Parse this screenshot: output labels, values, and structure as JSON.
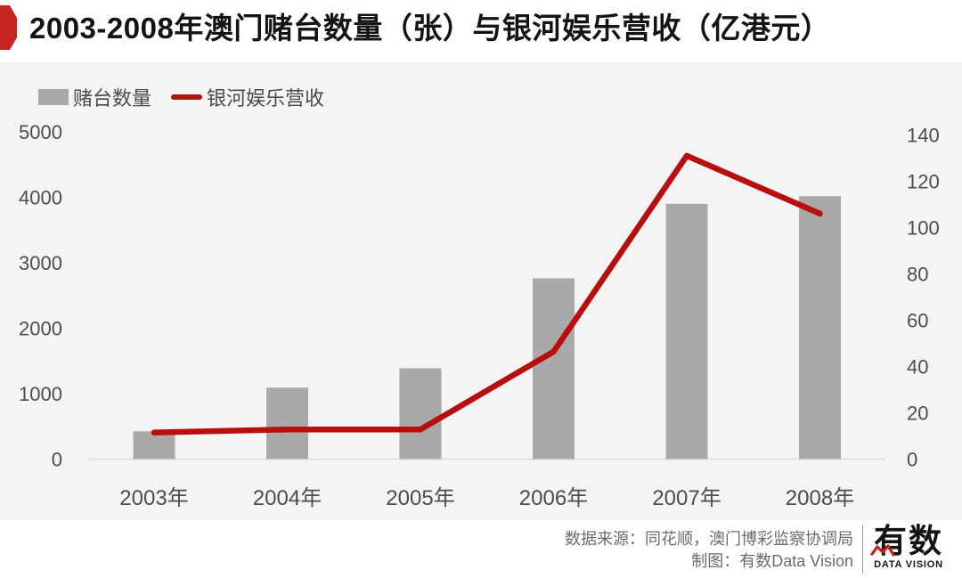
{
  "header": {
    "title": "2003-2008年澳门赌台数量（张）与银河娱乐营收（亿港元）"
  },
  "legend": {
    "bars_label": "赌台数量",
    "line_label": "银河娱乐营收"
  },
  "chart_data": {
    "type": "bar",
    "subtype": "bar-and-line-dual-axis",
    "title": "2003-2008年澳门赌台数量（张）与银河娱乐营收（亿港元）",
    "categories": [
      "2003年",
      "2004年",
      "2005年",
      "2006年",
      "2007年",
      "2008年"
    ],
    "series": [
      {
        "name": "赌台数量",
        "type": "bar",
        "axis": "left",
        "unit": "张",
        "values": [
          424,
          1092,
          1388,
          2762,
          3900,
          4017
        ]
      },
      {
        "name": "银河娱乐营收",
        "type": "line",
        "axis": "right",
        "unit": "亿港元",
        "values": [
          11.5,
          12.8,
          12.8,
          46.4,
          131,
          106
        ]
      }
    ],
    "left_axis": {
      "min": 0,
      "max": 5000,
      "step": 1000,
      "ticks": [
        0,
        1000,
        2000,
        3000,
        4000,
        5000
      ]
    },
    "right_axis": {
      "min": 0,
      "max": 140,
      "step": 20,
      "ticks": [
        0,
        20,
        40,
        60,
        80,
        100,
        120,
        140
      ]
    },
    "grid": false,
    "legend_position": "top-left"
  },
  "footer": {
    "source": "数据来源：同花顺，澳门博彩监察协调局",
    "credit": "制图：有数Data Vision",
    "logo_text": "有数",
    "logo_subtext": "DATA VISION"
  },
  "colors": {
    "bar": "#aba8a8",
    "line": "#b80e0e",
    "badge": "#c5261f",
    "panel_bg": "#f5f4f4",
    "axis_text": "#4d4d4d",
    "baseline": "#e2e0e0",
    "title_text": "#141414",
    "footer_text": "#6b6b6b",
    "logo_black": "#141414"
  }
}
